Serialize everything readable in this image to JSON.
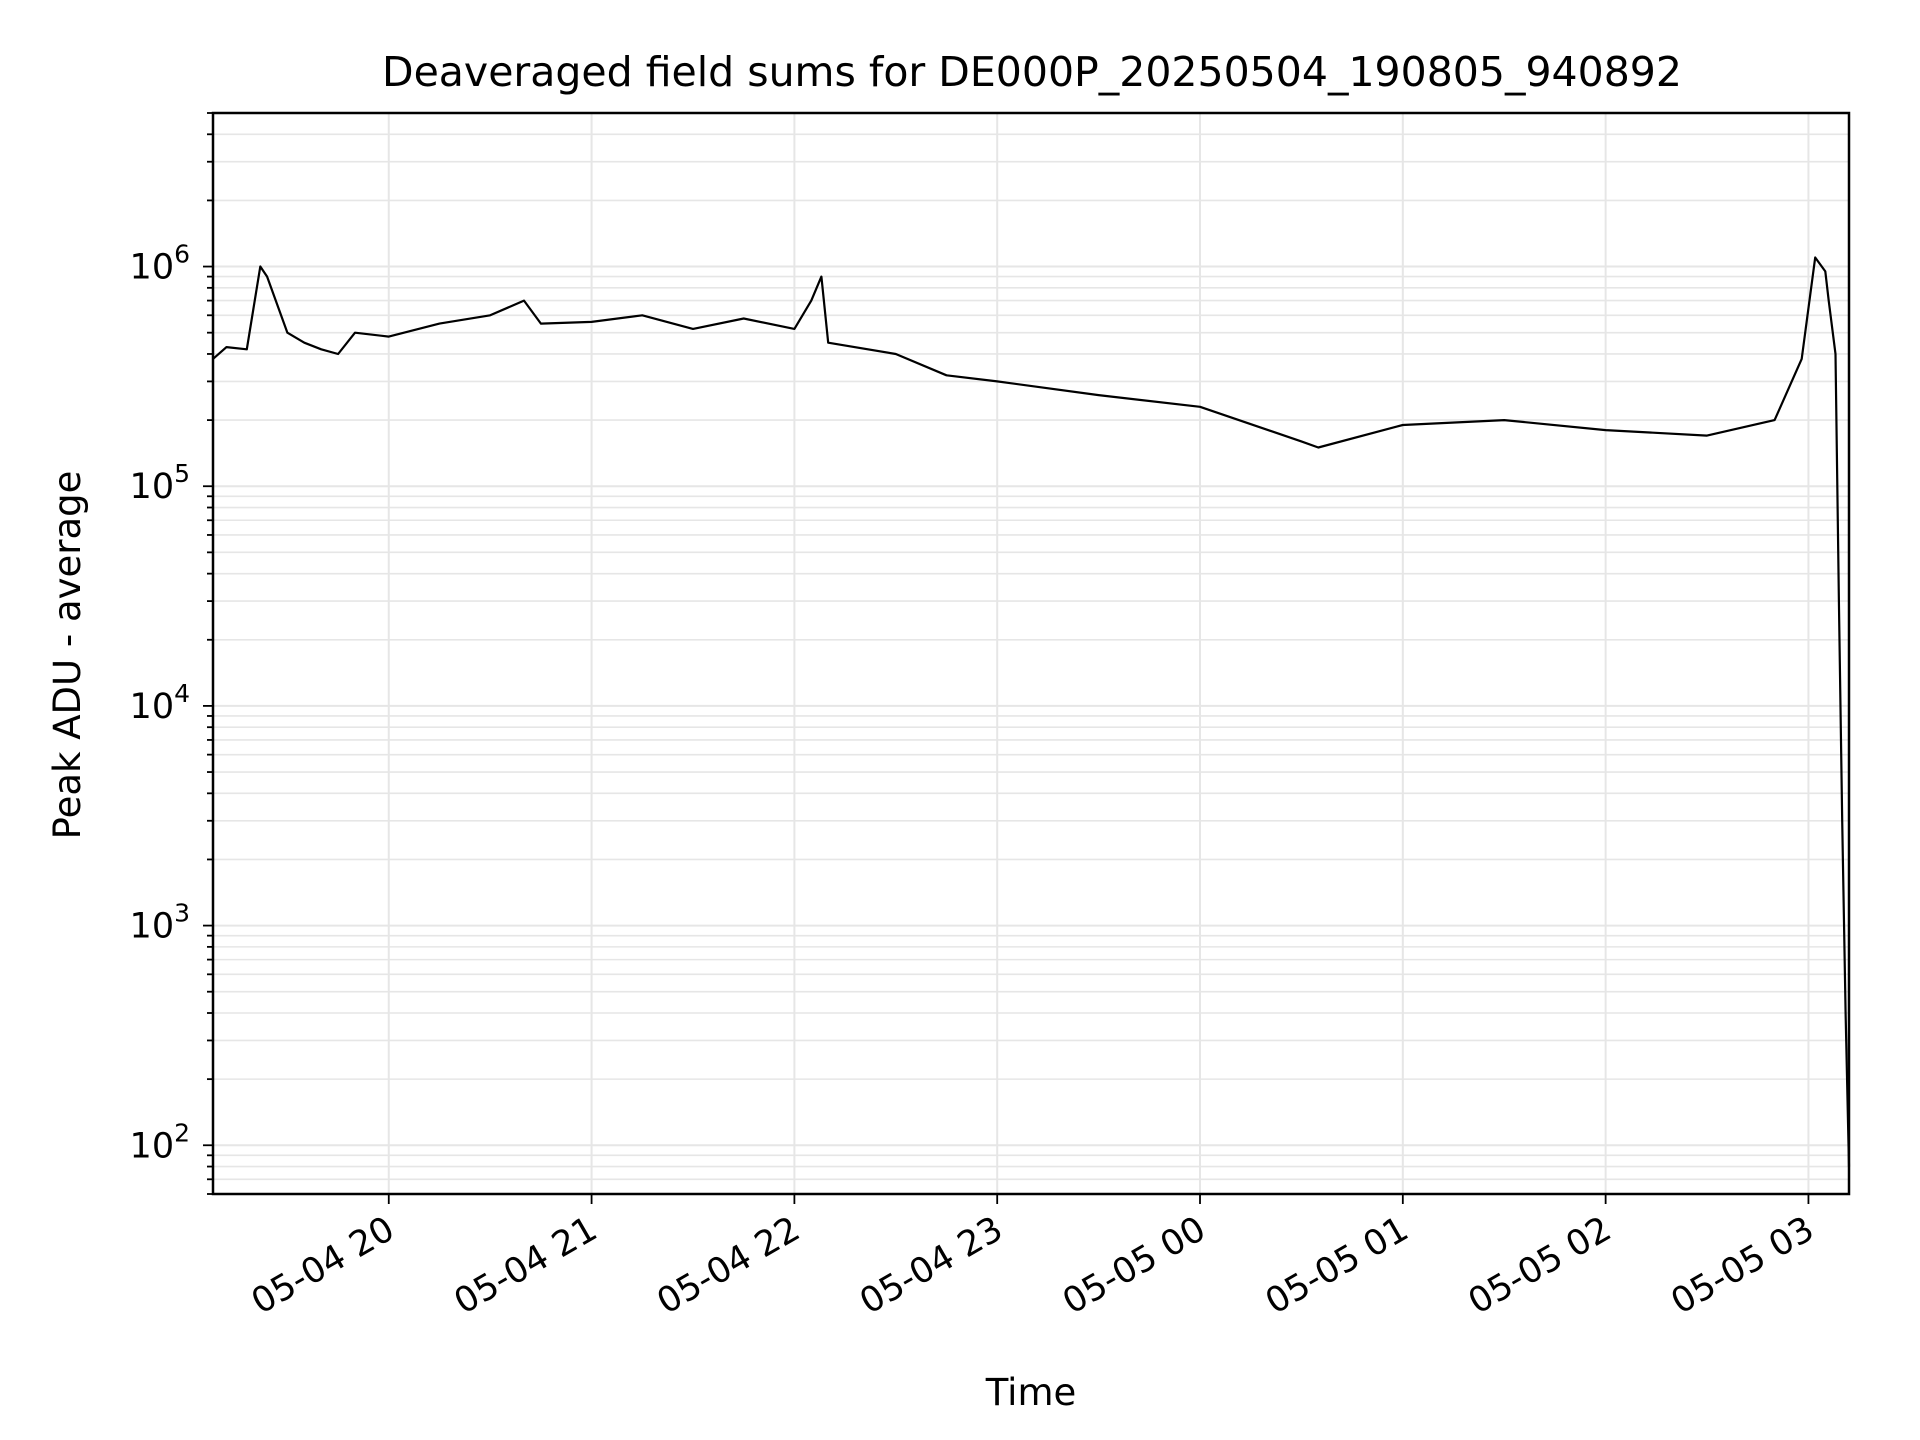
{
  "chart_data": {
    "type": "line",
    "title": "Deaveraged field sums for DE000P_20250504_190805_940892",
    "xlabel": "Time",
    "ylabel": "Peak ADU - average",
    "y_scale": "log",
    "ylim": [
      60,
      5000000
    ],
    "xlim": [
      "2025-05-04 19:08",
      "2025-05-05 03:12"
    ],
    "grid": true,
    "line_color": "#000000",
    "grid_color": "#e6e6e6",
    "x_ticks": [
      {
        "value": "2025-05-04 20:00",
        "label": "05-04 20"
      },
      {
        "value": "2025-05-04 21:00",
        "label": "05-04 21"
      },
      {
        "value": "2025-05-04 22:00",
        "label": "05-04 22"
      },
      {
        "value": "2025-05-04 23:00",
        "label": "05-04 23"
      },
      {
        "value": "2025-05-05 00:00",
        "label": "05-05 00"
      },
      {
        "value": "2025-05-05 01:00",
        "label": "05-05 01"
      },
      {
        "value": "2025-05-05 02:00",
        "label": "05-05 02"
      },
      {
        "value": "2025-05-05 03:00",
        "label": "05-05 03"
      }
    ],
    "y_ticks": [
      {
        "value": 100,
        "base": "10",
        "exp": "2"
      },
      {
        "value": 1000,
        "base": "10",
        "exp": "3"
      },
      {
        "value": 10000,
        "base": "10",
        "exp": "4"
      },
      {
        "value": 100000,
        "base": "10",
        "exp": "5"
      },
      {
        "value": 1000000,
        "base": "10",
        "exp": "6"
      }
    ],
    "series": [
      {
        "x": [
          "2025-05-04 19:08",
          "2025-05-04 19:12",
          "2025-05-04 19:18",
          "2025-05-04 19:22",
          "2025-05-04 19:24",
          "2025-05-04 19:30",
          "2025-05-04 19:35",
          "2025-05-04 19:40",
          "2025-05-04 19:45",
          "2025-05-04 19:50",
          "2025-05-04 20:00",
          "2025-05-04 20:15",
          "2025-05-04 20:30",
          "2025-05-04 20:40",
          "2025-05-04 20:45",
          "2025-05-04 21:00",
          "2025-05-04 21:15",
          "2025-05-04 21:30",
          "2025-05-04 21:45",
          "2025-05-04 22:00",
          "2025-05-04 22:05",
          "2025-05-04 22:08",
          "2025-05-04 22:10",
          "2025-05-04 22:30",
          "2025-05-04 22:45",
          "2025-05-04 23:00",
          "2025-05-04 23:30",
          "2025-05-05 00:00",
          "2025-05-05 00:30",
          "2025-05-05 00:35",
          "2025-05-05 01:00",
          "2025-05-05 01:30",
          "2025-05-05 02:00",
          "2025-05-05 02:30",
          "2025-05-05 02:50",
          "2025-05-05 02:58",
          "2025-05-05 03:02",
          "2025-05-05 03:05",
          "2025-05-05 03:06",
          "2025-05-05 03:08",
          "2025-05-05 03:09",
          "2025-05-05 03:10",
          "2025-05-05 03:11",
          "2025-05-05 03:12"
        ],
        "y": [
          380000,
          430000,
          420000,
          1000000,
          900000,
          500000,
          450000,
          420000,
          400000,
          500000,
          480000,
          550000,
          600000,
          700000,
          550000,
          560000,
          600000,
          520000,
          580000,
          520000,
          700000,
          900000,
          450000,
          400000,
          320000,
          300000,
          260000,
          230000,
          160000,
          150000,
          190000,
          200000,
          180000,
          170000,
          200000,
          380000,
          1100000,
          950000,
          700000,
          400000,
          30000,
          3000,
          400,
          80
        ]
      }
    ]
  }
}
